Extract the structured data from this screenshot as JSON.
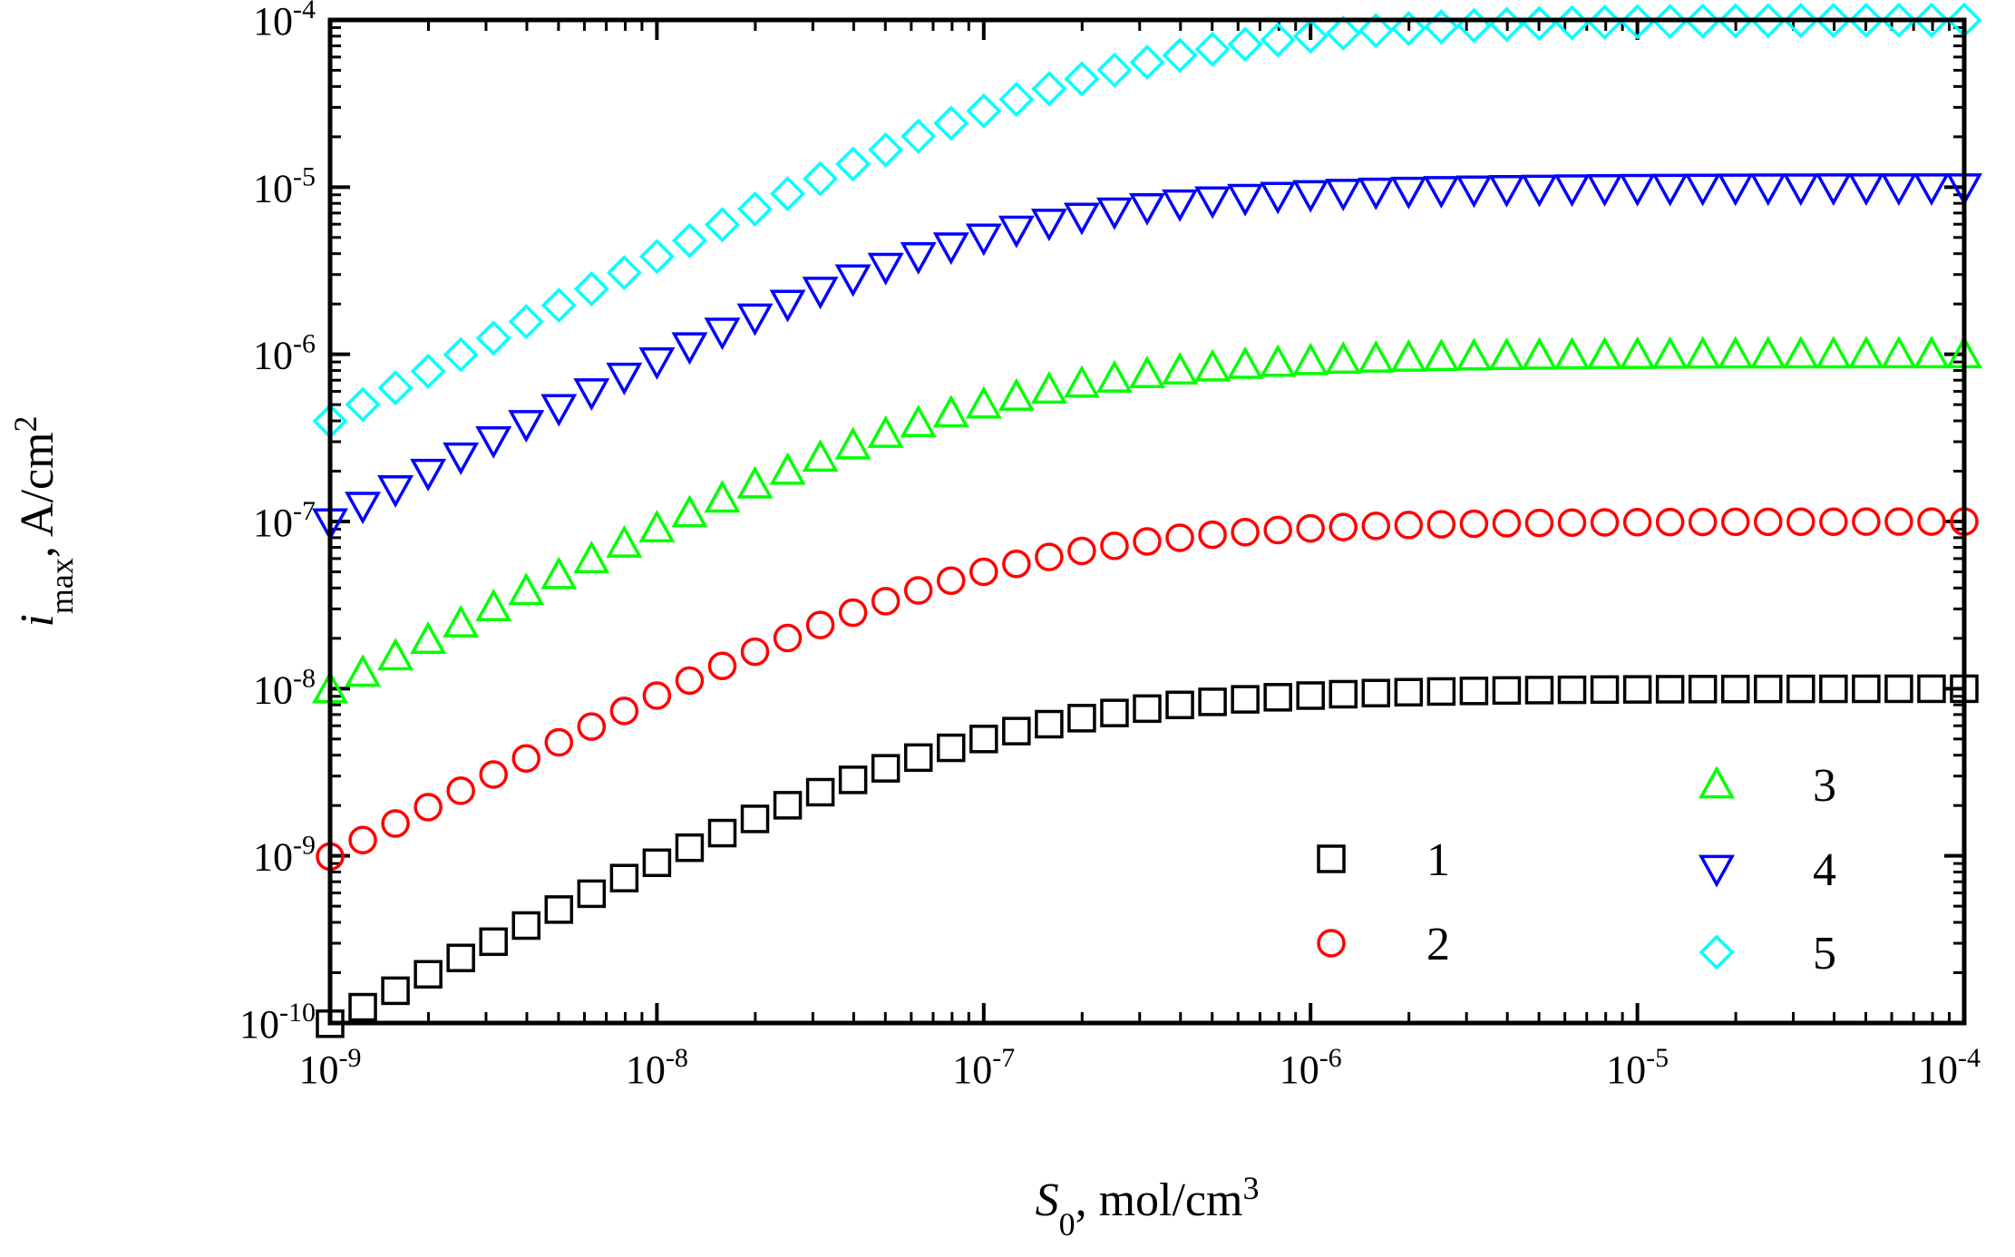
{
  "chart_data": {
    "type": "scatter",
    "x_scale": "log",
    "y_scale": "log",
    "xlim": [
      1e-09,
      0.0001
    ],
    "ylim": [
      1e-10,
      0.0001
    ],
    "xlabel": {
      "symbol": "S",
      "sub": "0",
      "unit_prefix": ", mol/cm",
      "unit_sup": "3"
    },
    "ylabel": {
      "symbol": "i",
      "sub": "max",
      "unit_prefix": ", A/cm",
      "unit_sup": "2"
    },
    "x_ticks": [
      {
        "value": 1e-09,
        "base": "10",
        "exp": "-9"
      },
      {
        "value": 1e-08,
        "base": "10",
        "exp": "-8"
      },
      {
        "value": 1e-07,
        "base": "10",
        "exp": "-7"
      },
      {
        "value": 1e-06,
        "base": "10",
        "exp": "-6"
      },
      {
        "value": 1e-05,
        "base": "10",
        "exp": "-5"
      },
      {
        "value": 0.0001,
        "base": "10",
        "exp": "-4"
      }
    ],
    "y_ticks": [
      {
        "value": 1e-10,
        "base": "10",
        "exp": "-10"
      },
      {
        "value": 1e-09,
        "base": "10",
        "exp": "-9"
      },
      {
        "value": 1e-08,
        "base": "10",
        "exp": "-8"
      },
      {
        "value": 1e-07,
        "base": "10",
        "exp": "-7"
      },
      {
        "value": 1e-06,
        "base": "10",
        "exp": "-6"
      },
      {
        "value": 1e-05,
        "base": "10",
        "exp": "-5"
      },
      {
        "value": 0.0001,
        "base": "10",
        "exp": "-4"
      }
    ],
    "points_per_series": 51,
    "model": "i = imax*S0/(S0 + K)",
    "series": [
      {
        "name": "1",
        "marker": "square",
        "color": "#000000",
        "imax": 1e-08,
        "K": 1e-07
      },
      {
        "name": "2",
        "marker": "circle",
        "color": "#ff0000",
        "imax": 1e-07,
        "K": 1e-07
      },
      {
        "name": "3",
        "marker": "triangle-up",
        "color": "#00ff00",
        "imax": 1e-06,
        "K": 1e-07
      },
      {
        "name": "4",
        "marker": "triangle-down",
        "color": "#0000ff",
        "imax": 1e-05,
        "K": 1e-07
      },
      {
        "name": "5",
        "marker": "diamond",
        "color": "#00ffff",
        "imax": 0.0001,
        "K": 2.5e-07
      }
    ],
    "legend": {
      "position": "lower-right",
      "columns": [
        [
          "1",
          "2"
        ],
        [
          "3",
          "4",
          "5"
        ]
      ]
    }
  }
}
